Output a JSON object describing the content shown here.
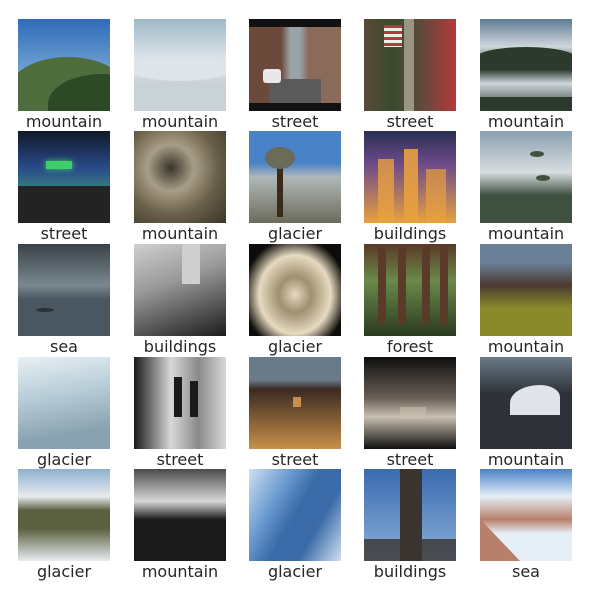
{
  "images": [
    {
      "label": "mountain",
      "scene": "mountain-sky",
      "colors": [
        "#2f6bb8",
        "#6e9fd0",
        "#4e6d3c",
        "#2d4a26"
      ]
    },
    {
      "label": "mountain",
      "scene": "mountain-clouds",
      "colors": [
        "#9fb8c8",
        "#dfe6ea",
        "#c9d2d6",
        "#3b3f3a"
      ]
    },
    {
      "label": "street",
      "scene": "street-day",
      "colors": [
        "#6b4a3c",
        "#9aa3a8",
        "#8a6a58",
        "#2a2a2a"
      ]
    },
    {
      "label": "street",
      "scene": "street-flag",
      "colors": [
        "#5a4a3a",
        "#3a4a2c",
        "#b53a3a",
        "#2c2a28"
      ]
    },
    {
      "label": "mountain",
      "scene": "mountain-lake",
      "colors": [
        "#5f7c95",
        "#cfd6dc",
        "#2c3a2e",
        "#8aa0b2"
      ]
    },
    {
      "label": "street",
      "scene": "street-night",
      "colors": [
        "#0f1828",
        "#2a4a8a",
        "#3fcf6a",
        "#1a1a1a"
      ]
    },
    {
      "label": "mountain",
      "scene": "mountain-rock",
      "colors": [
        "#6a604a",
        "#a89e88",
        "#3a3428",
        "#d0c8b2"
      ]
    },
    {
      "label": "glacier",
      "scene": "glacier-tree",
      "colors": [
        "#4a82c8",
        "#b0b8b8",
        "#6b6b5a",
        "#2f3a28"
      ]
    },
    {
      "label": "buildings",
      "scene": "city-night",
      "colors": [
        "#2a3050",
        "#6a4a8a",
        "#e8a040",
        "#3a2a20"
      ]
    },
    {
      "label": "mountain",
      "scene": "mountain-birds",
      "colors": [
        "#8aa0b0",
        "#d8dde0",
        "#3f5040",
        "#ffffff"
      ]
    },
    {
      "label": "sea",
      "scene": "sea-storm",
      "colors": [
        "#3a4248",
        "#7a8890",
        "#4a5660",
        "#2e3a40"
      ]
    },
    {
      "label": "buildings",
      "scene": "buildings-bw",
      "colors": [
        "#1c1c1c",
        "#9a9a9a",
        "#cfcfcf",
        "#505050"
      ]
    },
    {
      "label": "glacier",
      "scene": "glacier-cave",
      "colors": [
        "#0e0c0a",
        "#a08f70",
        "#e6dac0",
        "#3a3228"
      ]
    },
    {
      "label": "forest",
      "scene": "forest",
      "colors": [
        "#2a3a20",
        "#6a8a4a",
        "#5a3a28",
        "#a8b890"
      ]
    },
    {
      "label": "mountain",
      "scene": "mountain-valley",
      "colors": [
        "#6a7f98",
        "#4a3a30",
        "#8a8a2a",
        "#3a4a20"
      ]
    },
    {
      "label": "glacier",
      "scene": "glacier-snow",
      "colors": [
        "#b8cdd8",
        "#e8f0f4",
        "#8aa2b0",
        "#5a6a70"
      ]
    },
    {
      "label": "street",
      "scene": "street-bw",
      "colors": [
        "#1a1a1a",
        "#8a8a8a",
        "#d8d8d8",
        "#3a3a3a"
      ]
    },
    {
      "label": "street",
      "scene": "street-dusk",
      "colors": [
        "#6a7a88",
        "#3a2a22",
        "#c8904a",
        "#1e1a18"
      ]
    },
    {
      "label": "street",
      "scene": "street-dark",
      "colors": [
        "#0f0f0f",
        "#6a6058",
        "#c8c0b0",
        "#2a2622"
      ]
    },
    {
      "label": "mountain",
      "scene": "mountain-snowpeak",
      "colors": [
        "#6a7a88",
        "#e0e4e8",
        "#2e3238",
        "#9aa6b0"
      ]
    },
    {
      "label": "glacier",
      "scene": "glacier-valley",
      "colors": [
        "#8fb0d0",
        "#e8ecef",
        "#5a6040",
        "#c0c8cc"
      ]
    },
    {
      "label": "mountain",
      "scene": "mountain-mono",
      "colors": [
        "#4a4a4a",
        "#d8d8d8",
        "#1a1a1a",
        "#9a9a9a"
      ]
    },
    {
      "label": "glacier",
      "scene": "glacier-ice",
      "colors": [
        "#6a9ad0",
        "#cfe0f0",
        "#3a6aa8",
        "#eaf2f8"
      ]
    },
    {
      "label": "buildings",
      "scene": "skyscraper",
      "colors": [
        "#3a6ab0",
        "#8ab0d8",
        "#3a3430",
        "#c8a070"
      ]
    },
    {
      "label": "sea",
      "scene": "beach-walk",
      "colors": [
        "#4a82c8",
        "#e6eef6",
        "#b8806a",
        "#6a90a8"
      ]
    }
  ]
}
